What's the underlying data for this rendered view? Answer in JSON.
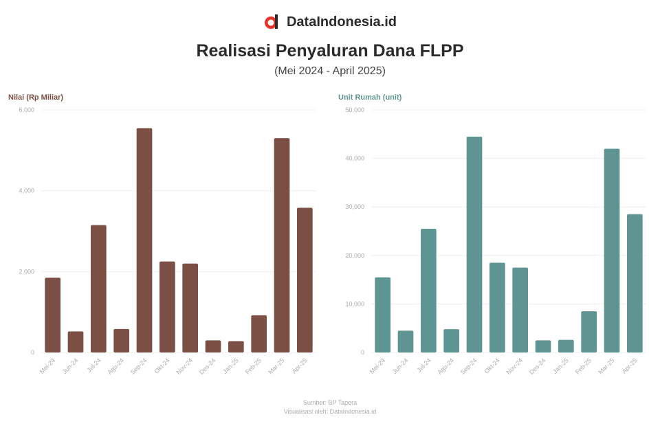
{
  "brand": {
    "name": "DataIndonesia.id",
    "logo_icon": "dataindonesia-logo-icon"
  },
  "header": {
    "title": "Realisasi Penyaluran Dana FLPP",
    "subtitle": "(Mei 2024 - April 2025)"
  },
  "footer": {
    "source": "Sumber: BP Tapera",
    "note": "Visualisasi oleh: DataIndonesia.id"
  },
  "colors": {
    "left_series": "#7b4f44",
    "right_series": "#5e9592",
    "grid": "#eeeeee",
    "tick": "#aaaaaa"
  },
  "chart_data": [
    {
      "type": "bar",
      "ylabel": "Nilai (Rp Miliar)",
      "categories": [
        "Mei-24",
        "Jun-24",
        "Jul-24",
        "Agu-24",
        "Sep-24",
        "Okt-24",
        "Nov-24",
        "Des-24",
        "Jan-25",
        "Feb-25",
        "Mar-25",
        "Apr-25"
      ],
      "values": [
        1850,
        520,
        3150,
        580,
        5550,
        2250,
        2200,
        300,
        280,
        920,
        5300,
        3580
      ],
      "ylim": [
        0,
        6000
      ],
      "yticks": [
        "0",
        "2,000",
        "4,000",
        "6,000"
      ],
      "grid": true
    },
    {
      "type": "bar",
      "ylabel": "Unit Rumah (unit)",
      "categories": [
        "Mei-24",
        "Jun-24",
        "Jul-24",
        "Agu-24",
        "Sep-24",
        "Okt-24",
        "Nov-24",
        "Des-24",
        "Jan-25",
        "Feb-25",
        "Mar-25",
        "Apr-25"
      ],
      "values": [
        15500,
        4500,
        25500,
        4800,
        44500,
        18500,
        17500,
        2500,
        2600,
        8500,
        42000,
        28500
      ],
      "ylim": [
        0,
        50000
      ],
      "yticks": [
        "0",
        "10,000",
        "20,000",
        "30,000",
        "40,000",
        "50,000"
      ],
      "grid": true
    }
  ]
}
